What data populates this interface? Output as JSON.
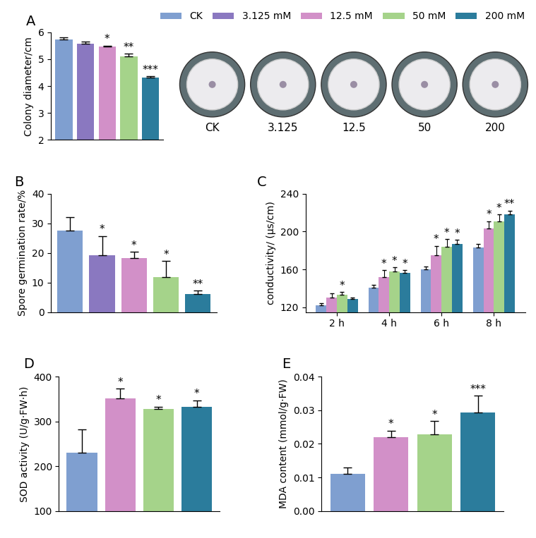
{
  "chart_data": [
    {
      "type": "bar",
      "title": "A",
      "y_label": "Colony diameter/cm",
      "categories": [
        "CK",
        "3.125 mM",
        "12.5 mM",
        "50 mM",
        "200 mM"
      ],
      "values": [
        5.72,
        5.58,
        5.47,
        5.1,
        4.32
      ],
      "errors": [
        0.1,
        0.07,
        0.03,
        0.1,
        0.05
      ],
      "significance": [
        null,
        null,
        "*",
        "**",
        "***"
      ],
      "colors": [
        "#7f9fd0",
        "#8a78c0",
        "#d290c8",
        "#a5d38a",
        "#2b7c9c"
      ],
      "ylim": [
        2,
        6
      ],
      "yticks": [
        2,
        3,
        4,
        5,
        6
      ],
      "tick_labels": "y",
      "legend": "upper right",
      "annotations": [
        "CK",
        "3.125",
        "12.5",
        "50",
        "200"
      ]
    },
    {
      "type": "bar",
      "title": "B",
      "y_label": "Spore germination rate/%",
      "categories": [
        "CK",
        "3.125 mM",
        "12.5 mM",
        "50 mM",
        "200 mM"
      ],
      "values": [
        27.5,
        19.2,
        18.2,
        11.8,
        6.1
      ],
      "errors": [
        4.5,
        6.5,
        2.2,
        5.4,
        1.2
      ],
      "significance": [
        null,
        "*",
        "*",
        "*",
        "**"
      ],
      "colors": [
        "#7f9fd0",
        "#8a78c0",
        "#d290c8",
        "#a5d38a",
        "#2b7c9c"
      ],
      "ylim": [
        0,
        40
      ],
      "yticks": [
        0,
        10,
        20,
        30,
        40
      ],
      "tick_labels": "y"
    },
    {
      "type": "grouped_bar",
      "title": "C",
      "y_label": "conductivity/ (μs/cm)",
      "categories": [
        "2 h",
        "4 h",
        "6 h",
        "8 h"
      ],
      "series": [
        {
          "name": "CK",
          "color": "#7f9fd0",
          "values": [
            122,
            141,
            160,
            183
          ],
          "errors": [
            2,
            3,
            3,
            4
          ],
          "significance": [
            null,
            null,
            null,
            null
          ]
        },
        {
          "name": "12.5 mM",
          "color": "#d290c8",
          "values": [
            130,
            152,
            175,
            203
          ],
          "errors": [
            5,
            7,
            10,
            8
          ],
          "significance": [
            null,
            "*",
            "*",
            "*"
          ]
        },
        {
          "name": "50 mM",
          "color": "#a5d38a",
          "values": [
            133,
            158,
            184,
            211
          ],
          "errors": [
            3,
            4,
            8,
            7
          ],
          "significance": [
            "*",
            "*",
            "*",
            "*"
          ]
        },
        {
          "name": "200 mM",
          "color": "#2b7c9c",
          "values": [
            129,
            156,
            187,
            218
          ],
          "errors": [
            1,
            3,
            4,
            4
          ],
          "significance": [
            null,
            "*",
            "*",
            "**"
          ]
        }
      ],
      "ylim": [
        115,
        240
      ],
      "yticks": [
        120,
        160,
        200,
        240
      ]
    },
    {
      "type": "bar",
      "title": "D",
      "y_label": "SOD activity (U/g·FW·h)",
      "categories": [
        "CK",
        "12.5 mM",
        "50 mM",
        "200 mM"
      ],
      "values": [
        230,
        351,
        328,
        333
      ],
      "errors": [
        52,
        22,
        5,
        14
      ],
      "significance": [
        null,
        "*",
        "*",
        "*"
      ],
      "colors": [
        "#7f9fd0",
        "#d290c8",
        "#a5d38a",
        "#2b7c9c"
      ],
      "ylim": [
        100,
        400
      ],
      "yticks": [
        100,
        200,
        300,
        400
      ],
      "tick_labels": "y"
    },
    {
      "type": "bar",
      "title": "E",
      "y_label": "MDA content (mmol/g·FW)",
      "categories": [
        "CK",
        "12.5 mM",
        "50 mM",
        "200 mM"
      ],
      "values": [
        0.011,
        0.0219,
        0.0228,
        0.0293
      ],
      "errors": [
        0.002,
        0.002,
        0.004,
        0.005
      ],
      "significance": [
        null,
        "*",
        "*",
        "***"
      ],
      "colors": [
        "#7f9fd0",
        "#d290c8",
        "#a5d38a",
        "#2b7c9c"
      ],
      "ylim": [
        0,
        0.04
      ],
      "yticks": [
        {
          "value": 0,
          "label": "0.00"
        },
        0.01,
        0.02,
        0.03,
        0.04
      ],
      "tick_labels": "y"
    }
  ]
}
